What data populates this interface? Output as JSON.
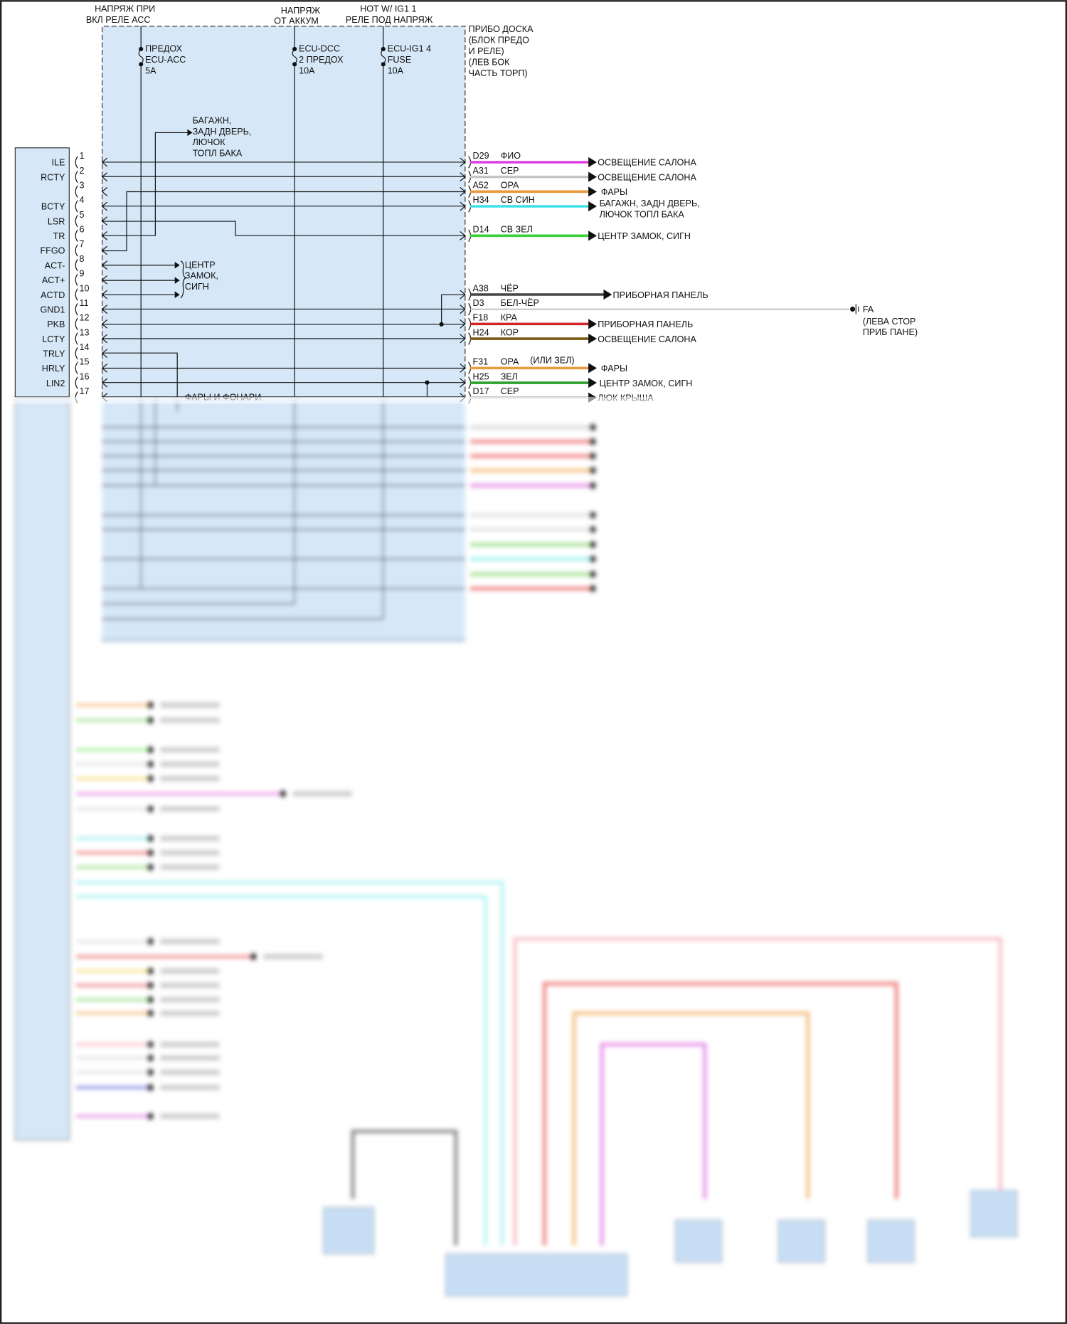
{
  "supplies": [
    {
      "line1": "НАПРЯЖ ПРИ",
      "line2": "ВКЛ РЕЛЕ АСС"
    },
    {
      "line1": "НАПРЯЖ",
      "line2": "ОТ АККУМ"
    },
    {
      "line1": "HOT W/ IG1 1",
      "line2": "РЕЛЕ ПОД НАПРЯЖ"
    }
  ],
  "fuses": [
    {
      "line1": "ПРЕДОХ",
      "line2": "ECU-ACC",
      "rating": "5A"
    },
    {
      "line1": "ECU-DCC",
      "line2": "2 ПРЕДОХ",
      "rating": "10A"
    },
    {
      "line1": "ECU-IG1 4",
      "line2": "FUSE",
      "rating": "10A"
    }
  ],
  "junction_block": [
    "ПРИБО ДОСКА",
    "(БЛОК ПРЕДО",
    "И РЕЛЕ)",
    "(ЛЕВ БОК",
    "ЧАСТЬ ТОРП)"
  ],
  "inner_labels": {
    "trunk": [
      "БАГАЖН,",
      "ЗАДН ДВЕРЬ,",
      "ЛЮЧОК",
      "ТОПЛ БАКА"
    ],
    "central_lock": [
      "ЦЕНТР",
      "ЗАМОК,",
      "СИГН"
    ],
    "lights": "ФАРЫ И ФОНАРИ"
  },
  "pins": [
    {
      "num": "1",
      "label": "ILE"
    },
    {
      "num": "2",
      "label": "RCTY"
    },
    {
      "num": "3",
      "label": ""
    },
    {
      "num": "4",
      "label": "BCTY"
    },
    {
      "num": "5",
      "label": "LSR"
    },
    {
      "num": "6",
      "label": "TR"
    },
    {
      "num": "7",
      "label": "FFGO"
    },
    {
      "num": "8",
      "label": "ACT-"
    },
    {
      "num": "9",
      "label": "ACT+"
    },
    {
      "num": "10",
      "label": "ACTD"
    },
    {
      "num": "11",
      "label": "GND1"
    },
    {
      "num": "12",
      "label": "PKB"
    },
    {
      "num": "13",
      "label": "LCTY"
    },
    {
      "num": "14",
      "label": "TRLY"
    },
    {
      "num": "15",
      "label": "HRLY"
    },
    {
      "num": "16",
      "label": "LIN2"
    },
    {
      "num": "17",
      "label": ""
    }
  ],
  "wires": [
    {
      "pin": 1,
      "code": "D29",
      "wire_color": "ФИО",
      "color": "#e03ce0",
      "dest": [
        "ОСВЕЩЕНИЕ САЛОНА"
      ]
    },
    {
      "pin": 2,
      "code": "A31",
      "wire_color": "СЕР",
      "color": "#c4c4c4",
      "dest": [
        "ОСВЕЩЕНИЕ САЛОНА"
      ]
    },
    {
      "pin": 3,
      "code": "A52",
      "wire_color": "ОРА",
      "color": "#e89a3c",
      "dest": [
        "ФАРЫ"
      ]
    },
    {
      "pin": 4,
      "code": "H34",
      "wire_color": "СВ СИН",
      "color": "#3ce0e8",
      "dest": [
        "БАГАЖН, ЗАДН ДВЕРЬ,",
        "ЛЮЧОК ТОПЛ БАКА"
      ]
    },
    {
      "pin": 6,
      "code": "D14",
      "wire_color": "СВ ЗЕЛ",
      "color": "#3cd03c",
      "dest": [
        "ЦЕНТР ЗАМОК, СИГН"
      ]
    },
    {
      "pin": 10,
      "code": "A38",
      "wire_color": "ЧЁР",
      "color": "#454545",
      "dest": [
        "ПРИБОРНАЯ ПАНЕЛЬ"
      ]
    },
    {
      "pin": 11,
      "code": "D3",
      "wire_color": "БЕЛ-ЧЁР",
      "color": "#bdbdbd",
      "dest": []
    },
    {
      "pin": 12,
      "code": "F18",
      "wire_color": "КРА",
      "color": "#d42424",
      "dest": [
        "ПРИБОРНАЯ ПАНЕЛЬ"
      ]
    },
    {
      "pin": 13,
      "code": "H24",
      "wire_color": "КОР",
      "color": "#7a5a14",
      "dest": [
        "ОСВЕЩЕНИЕ САЛОНА"
      ]
    },
    {
      "pin": 15,
      "code": "F31",
      "wire_color": "ОРА",
      "note": "(ИЛИ ЗЕЛ)",
      "color": "#e89a3c",
      "dest": [
        "ФАРЫ"
      ]
    },
    {
      "pin": 16,
      "code": "H25",
      "wire_color": "ЗЕЛ",
      "color": "#2ea02e",
      "dest": [
        "ЦЕНТР ЗАМОК, СИГН"
      ]
    },
    {
      "pin": 17,
      "code": "D17",
      "wire_color": "СЕР",
      "color": "#c4c4c4",
      "dest": [
        "ЛЮК КРЫША"
      ]
    }
  ],
  "ground": {
    "name": "FA",
    "line1": "(ЛЕВА СТОР",
    "line2": "ПРИБ ПАНЕ)"
  }
}
